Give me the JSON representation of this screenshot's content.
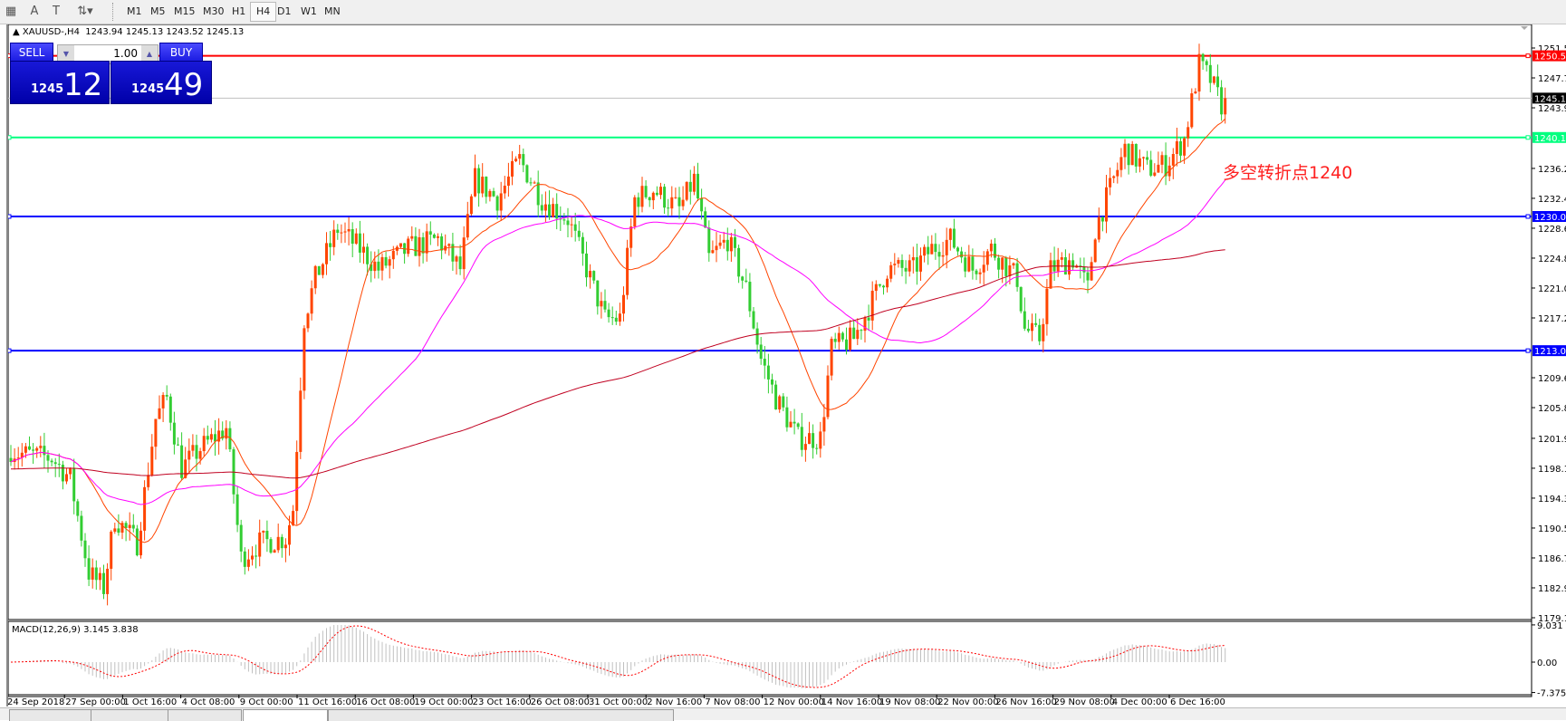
{
  "toolbar": {
    "icons": [
      "grid-icon",
      "text-icon",
      "text-label-icon",
      "arrows-icon"
    ],
    "timeframes": [
      "M1",
      "M5",
      "M15",
      "M30",
      "H1",
      "H4",
      "D1",
      "W1",
      "MN"
    ],
    "selected": "H4"
  },
  "chart_header": {
    "symbol": "XAUUSD-,H4",
    "ohlc": "1243.94 1245.13 1243.52 1245.13"
  },
  "trade_panel": {
    "sell_label": "SELL",
    "buy_label": "BUY",
    "lot": "1.00",
    "sell_price_small": "1245",
    "sell_price_big": "12",
    "buy_price_small": "1245",
    "buy_price_big": "49"
  },
  "annotation": "多空转折点1240",
  "chart_data": {
    "type": "candlestick",
    "price_axis": {
      "ticks": [
        "1251.50",
        "1247.70",
        "1243.90",
        "1236.20",
        "1232.40",
        "1228.60",
        "1224.80",
        "1221.00",
        "1217.20",
        "1209.60",
        "1205.80",
        "1201.90",
        "1198.10",
        "1194.30",
        "1190.50",
        "1186.70",
        "1182.90",
        "1179.10"
      ],
      "ylim": [
        1179.1,
        1251.5
      ]
    },
    "horizontal_lines": [
      {
        "price": 1250.51,
        "label": "1250.51",
        "color": "#ff0000"
      },
      {
        "price": 1240.13,
        "label": "1240.13",
        "color": "#00ff7f"
      },
      {
        "price": 1230.09,
        "label": "1230.09",
        "color": "#0000ff"
      },
      {
        "price": 1213.04,
        "label": "1213.04",
        "color": "#0000ff"
      }
    ],
    "bid_line": {
      "price": 1245.13,
      "label": "1245.13",
      "color": "#c0c0c0"
    },
    "time_axis": [
      "24 Sep 2018",
      "27 Sep 00:00",
      "1 Oct 16:00",
      "4 Oct 08:00",
      "9 Oct 00:00",
      "11 Oct 16:00",
      "16 Oct 08:00",
      "19 Oct 00:00",
      "23 Oct 16:00",
      "26 Oct 08:00",
      "31 Oct 00:00",
      "2 Nov 16:00",
      "7 Nov 08:00",
      "12 Nov 00:00",
      "14 Nov 16:00",
      "19 Nov 08:00",
      "22 Nov 00:00",
      "26 Nov 16:00",
      "29 Nov 08:00",
      "4 Dec 00:00",
      "6 Dec 16:00"
    ],
    "close_path_bar_price": [
      [
        0,
        1200.5
      ],
      [
        2,
        1200.0
      ],
      [
        11,
        1199.4
      ],
      [
        16,
        1196.8
      ],
      [
        21,
        1184.8
      ],
      [
        25,
        1182.9
      ],
      [
        28,
        1191.8
      ],
      [
        34,
        1188.6
      ],
      [
        39,
        1204.4
      ],
      [
        42,
        1207.0
      ],
      [
        46,
        1198.1
      ],
      [
        51,
        1200.6
      ],
      [
        58,
        1203.2
      ],
      [
        62,
        1186.7
      ],
      [
        67,
        1188.6
      ],
      [
        74,
        1189.2
      ],
      [
        76,
        1193.0
      ],
      [
        79,
        1217.1
      ],
      [
        82,
        1222.2
      ],
      [
        88,
        1228.5
      ],
      [
        94,
        1226.0
      ],
      [
        99,
        1223.4
      ],
      [
        107,
        1226.0
      ],
      [
        115,
        1227.2
      ],
      [
        121,
        1223.4
      ],
      [
        125,
        1234.8
      ],
      [
        131,
        1232.3
      ],
      [
        137,
        1237.3
      ],
      [
        143,
        1232.3
      ],
      [
        150,
        1229.8
      ],
      [
        154,
        1224.7
      ],
      [
        160,
        1217.1
      ],
      [
        164,
        1217.1
      ],
      [
        168,
        1232.3
      ],
      [
        173,
        1233.5
      ],
      [
        180,
        1231.0
      ],
      [
        184,
        1234.8
      ],
      [
        188,
        1224.7
      ],
      [
        193,
        1227.2
      ],
      [
        198,
        1220.9
      ],
      [
        202,
        1212.0
      ],
      [
        206,
        1207.0
      ],
      [
        212,
        1201.9
      ],
      [
        218,
        1201.9
      ],
      [
        221,
        1213.3
      ],
      [
        227,
        1214.6
      ],
      [
        231,
        1218.4
      ],
      [
        236,
        1223.4
      ],
      [
        243,
        1223.4
      ],
      [
        248,
        1226.0
      ],
      [
        253,
        1227.2
      ],
      [
        259,
        1223.4
      ],
      [
        264,
        1226.0
      ],
      [
        271,
        1222.2
      ],
      [
        273,
        1215.8
      ],
      [
        277,
        1214.6
      ],
      [
        280,
        1223.4
      ],
      [
        286,
        1224.7
      ],
      [
        290,
        1220.9
      ],
      [
        292,
        1228.5
      ],
      [
        295,
        1232.3
      ],
      [
        300,
        1238.6
      ],
      [
        306,
        1236.1
      ],
      [
        311,
        1236.7
      ],
      [
        316,
        1239.9
      ],
      [
        320,
        1249.4
      ],
      [
        323,
        1247.5
      ],
      [
        326,
        1244.3
      ],
      [
        327,
        1245.13
      ]
    ],
    "candle_colors": {
      "up": "#ff4500",
      "down": "#32cd32"
    },
    "moving_averages": [
      {
        "color": "#ff4500"
      },
      {
        "color": "#ff00ff"
      },
      {
        "color": "#c00020"
      }
    ],
    "macd": {
      "label": "MACD(12,26,9) 3.145 3.838",
      "ticks": [
        "9.031",
        "0.00",
        "-7.375"
      ],
      "ylim": [
        -7.375,
        9.031
      ],
      "histogram_color": "#c0c0c0",
      "signal_color": "#ff0000"
    }
  }
}
